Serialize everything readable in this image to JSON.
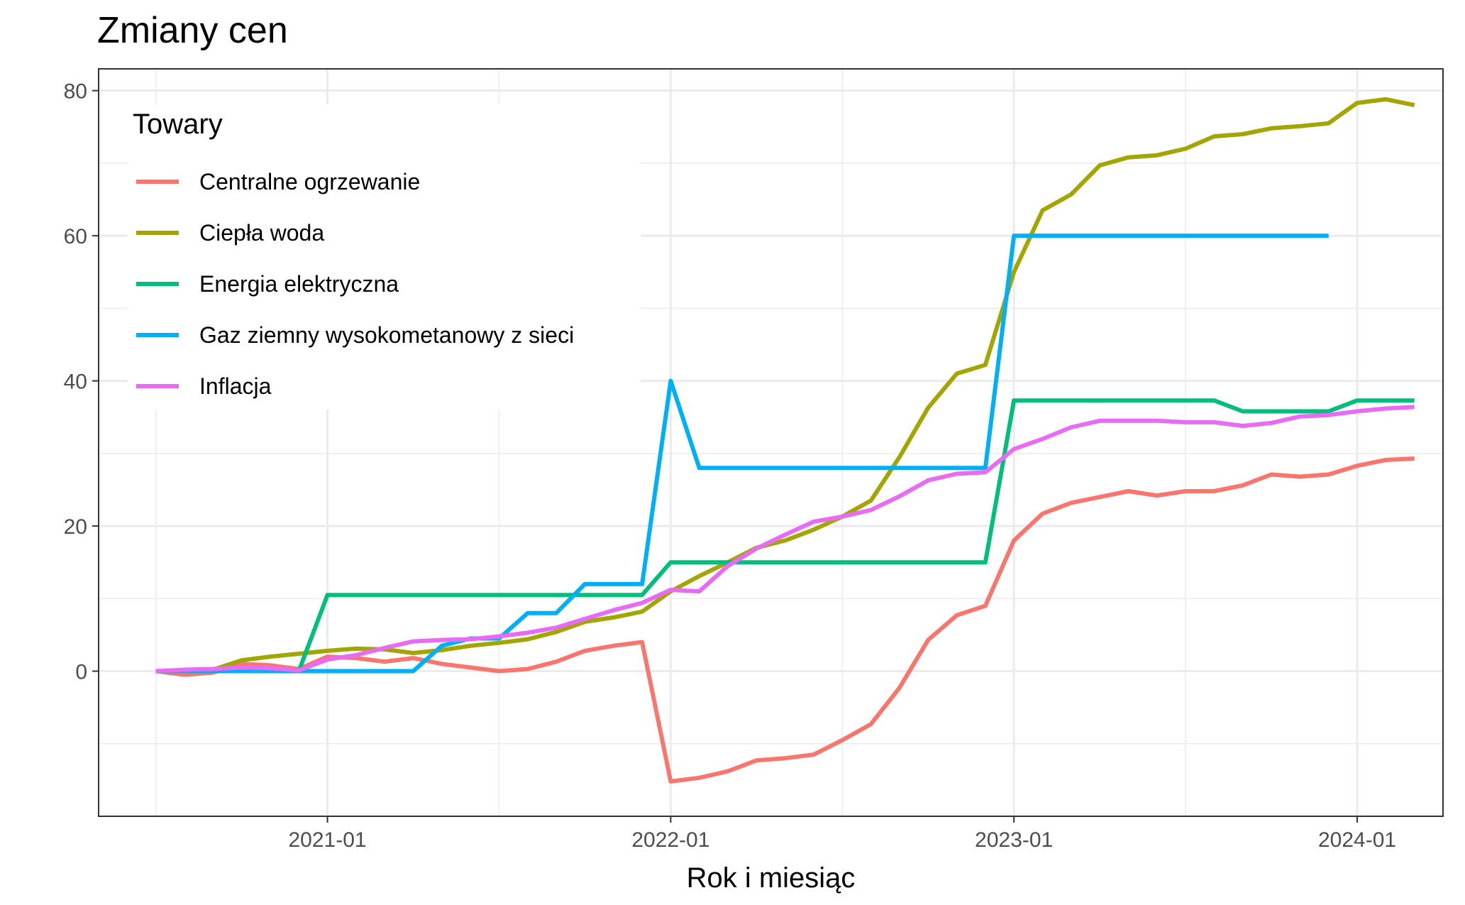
{
  "chart_data": {
    "type": "line",
    "title": "Zmiany cen",
    "xlabel": "Rok i miesiąc",
    "ylabel": "",
    "x_ticks": [
      "2021-01",
      "2022-01",
      "2023-01",
      "2024-01"
    ],
    "y_ticks": [
      0,
      20,
      40,
      60,
      80
    ],
    "xlim": [
      "2020-05-01",
      "2024-04-01"
    ],
    "ylim": [
      -20,
      83
    ],
    "grid": true,
    "legend": {
      "title": "Towary",
      "position": "top-left inside"
    },
    "x": [
      "2020-07",
      "2020-08",
      "2020-09",
      "2020-10",
      "2020-11",
      "2020-12",
      "2021-01",
      "2021-02",
      "2021-03",
      "2021-04",
      "2021-05",
      "2021-06",
      "2021-07",
      "2021-08",
      "2021-09",
      "2021-10",
      "2021-11",
      "2021-12",
      "2022-01",
      "2022-02",
      "2022-03",
      "2022-04",
      "2022-05",
      "2022-06",
      "2022-07",
      "2022-08",
      "2022-09",
      "2022-10",
      "2022-11",
      "2022-12",
      "2023-01",
      "2023-02",
      "2023-03",
      "2023-04",
      "2023-05",
      "2023-06",
      "2023-07",
      "2023-08",
      "2023-09",
      "2023-10",
      "2023-11",
      "2023-12",
      "2024-01",
      "2024-02",
      "2024-03"
    ],
    "series": [
      {
        "name": "Centralne ogrzewanie",
        "color": "#F8766D",
        "values": [
          0,
          -0.5,
          -0.2,
          1,
          0.8,
          0.3,
          2,
          1.8,
          1.3,
          1.8,
          1,
          0.5,
          0,
          0.3,
          1.3,
          2.8,
          3.5,
          4,
          -15.2,
          -14.7,
          -13.8,
          -12.3,
          -12,
          -11.5,
          -9.5,
          -7.3,
          -2.3,
          4.3,
          7.7,
          9,
          18,
          21.7,
          23.2,
          24,
          24.8,
          24.2,
          24.8,
          24.8,
          25.6,
          27.1,
          26.8,
          27.1,
          28.3,
          29.1,
          29.3
        ]
      },
      {
        "name": "Ciepła woda",
        "color": "#A3A500",
        "values": [
          0,
          0,
          0.2,
          1.5,
          2,
          2.4,
          2.8,
          3.1,
          3,
          2.5,
          2.9,
          3.5,
          3.9,
          4.4,
          5.4,
          6.8,
          7.4,
          8.2,
          11,
          13.1,
          15,
          17,
          18,
          19.5,
          21.3,
          23.5,
          29.5,
          36.3,
          41,
          42.2,
          55,
          63.5,
          65.7,
          69.7,
          70.8,
          71.1,
          72,
          73.7,
          74,
          74.8,
          75.1,
          75.5,
          78.3,
          78.8,
          78
        ]
      },
      {
        "name": "Energia elektryczna",
        "color": "#00BF7D",
        "values": [
          0,
          0,
          0,
          0,
          0,
          0,
          10.5,
          10.5,
          10.5,
          10.5,
          10.5,
          10.5,
          10.5,
          10.5,
          10.5,
          10.5,
          10.5,
          10.5,
          15,
          15,
          15,
          15,
          15,
          15,
          15,
          15,
          15,
          15,
          15,
          15,
          37.3,
          37.3,
          37.3,
          37.3,
          37.3,
          37.3,
          37.3,
          37.3,
          35.8,
          35.8,
          35.8,
          35.8,
          37.3,
          37.3,
          37.3
        ]
      },
      {
        "name": "Gaz ziemny wysokometanowy z sieci",
        "color": "#00B0F6",
        "values": [
          0,
          0,
          0,
          0,
          0,
          0,
          0,
          0,
          0,
          0,
          3.5,
          4.5,
          4.5,
          8,
          8,
          12,
          12,
          12,
          40,
          28,
          28,
          28,
          28,
          28,
          28,
          28,
          28,
          28,
          28,
          28,
          60,
          60,
          60,
          60,
          60,
          60,
          60,
          60,
          60,
          60,
          60,
          60,
          null,
          null,
          null
        ]
      },
      {
        "name": "Inflacja",
        "color": "#E76BF3",
        "values": [
          0,
          0.2,
          0.3,
          0.5,
          0.4,
          0.1,
          1.6,
          2.2,
          3.2,
          4.1,
          4.3,
          4.4,
          4.8,
          5.3,
          6,
          7.2,
          8.4,
          9.4,
          11.2,
          11,
          14.5,
          16.9,
          18.8,
          20.6,
          21.3,
          22.2,
          24.1,
          26.3,
          27.2,
          27.4,
          30.6,
          32,
          33.6,
          34.5,
          34.5,
          34.5,
          34.3,
          34.3,
          33.8,
          34.2,
          35.1,
          35.3,
          35.8,
          36.2,
          36.4
        ]
      }
    ]
  }
}
